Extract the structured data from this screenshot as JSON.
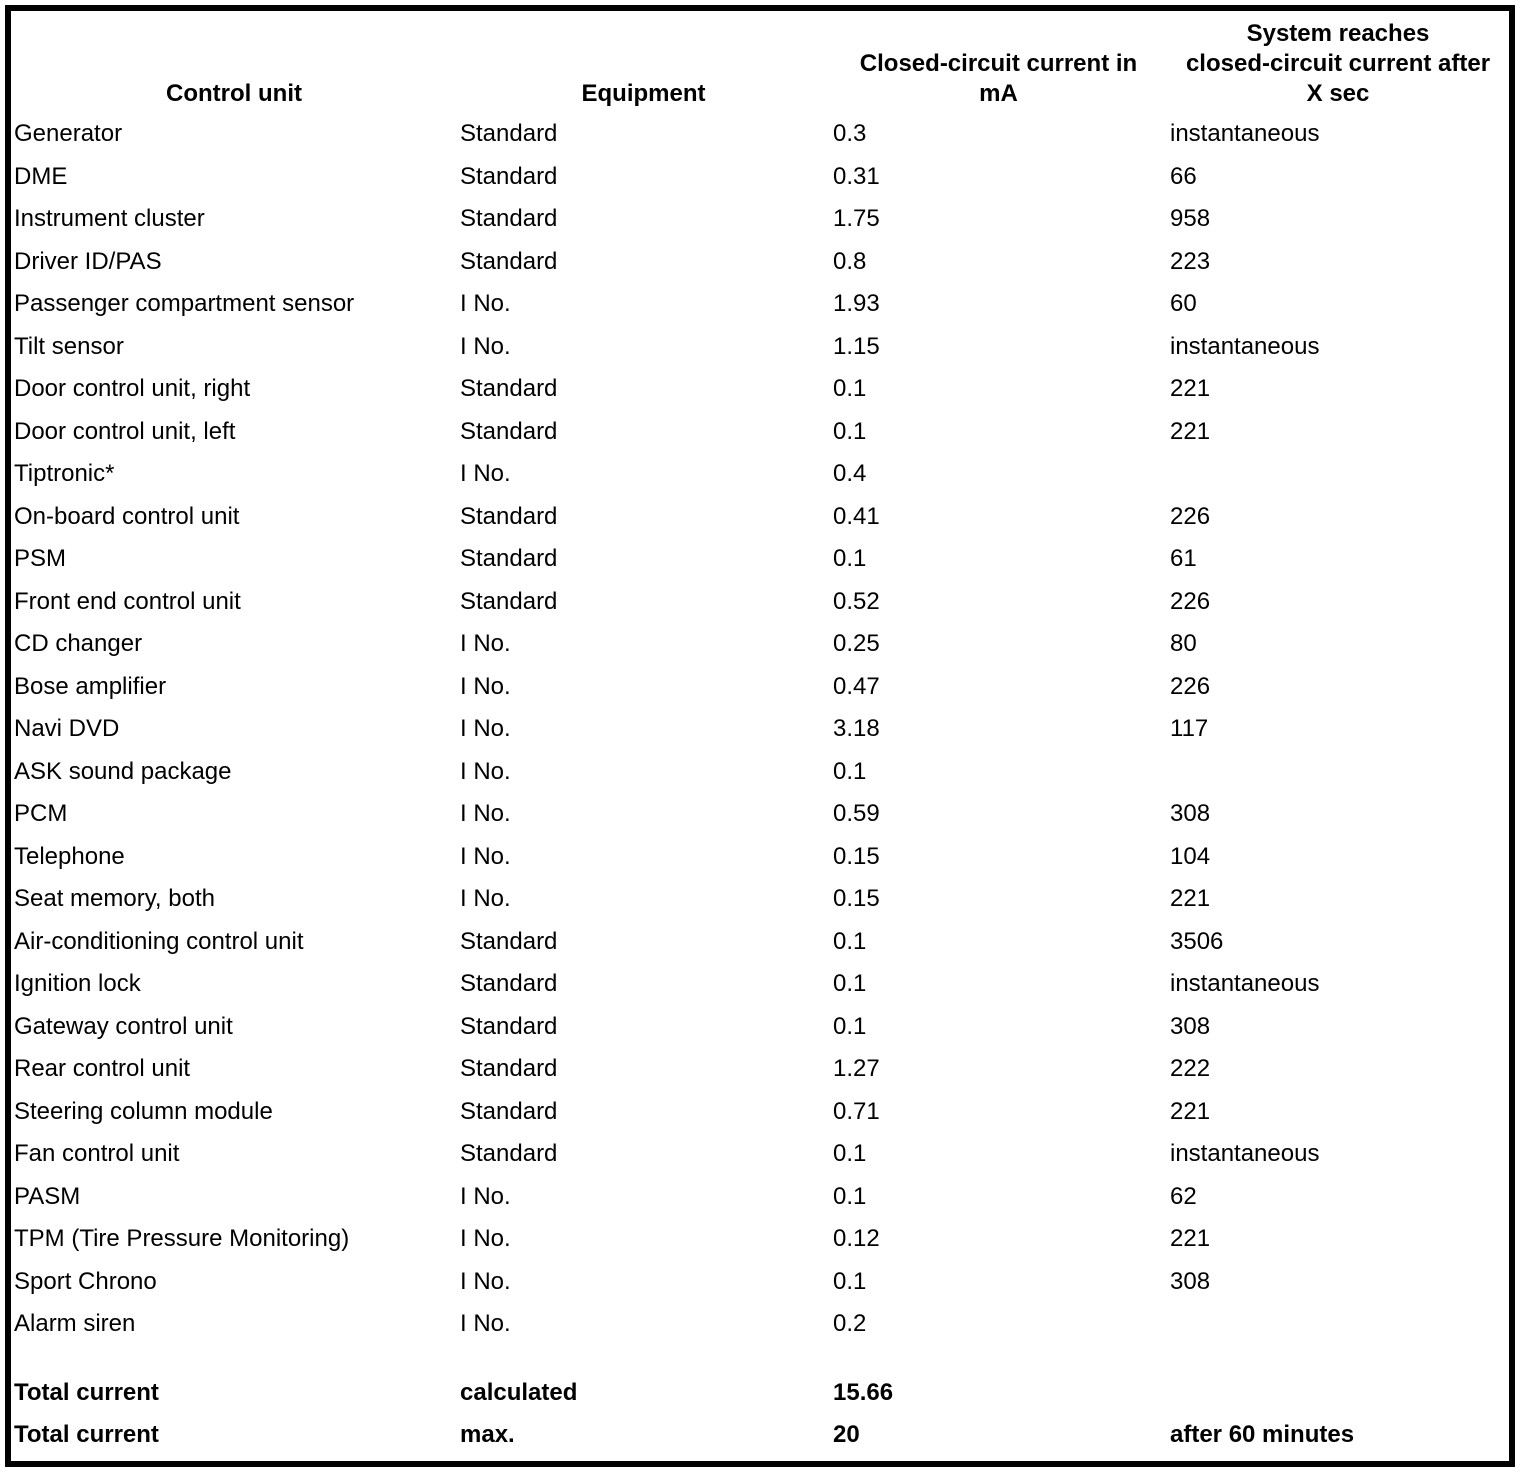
{
  "table": {
    "columns": [
      {
        "id": "control_unit",
        "label_lines": [
          "Control unit"
        ]
      },
      {
        "id": "equipment",
        "label_lines": [
          "Equipment"
        ]
      },
      {
        "id": "current_ma",
        "label_lines": [
          "Closed-circuit current in",
          "mA"
        ]
      },
      {
        "id": "reaches_after_sec",
        "label_lines": [
          "System reaches",
          "closed-circuit current after",
          "X sec"
        ]
      }
    ],
    "rows": [
      [
        "Generator",
        "Standard",
        "0.3",
        "instantaneous"
      ],
      [
        "DME",
        "Standard",
        "0.31",
        "66"
      ],
      [
        "Instrument cluster",
        "Standard",
        "1.75",
        "958"
      ],
      [
        "Driver ID/PAS",
        "Standard",
        "0.8",
        "223"
      ],
      [
        "Passenger compartment sensor",
        "I No.",
        "1.93",
        "60"
      ],
      [
        "Tilt sensor",
        "I No.",
        "1.15",
        "instantaneous"
      ],
      [
        "Door control unit, right",
        "Standard",
        "0.1",
        "221"
      ],
      [
        "Door control unit, left",
        "Standard",
        "0.1",
        "221"
      ],
      [
        "Tiptronic*",
        "I No.",
        "0.4",
        ""
      ],
      [
        "On-board control unit",
        "Standard",
        "0.41",
        "226"
      ],
      [
        "PSM",
        "Standard",
        "0.1",
        "61"
      ],
      [
        "Front end control unit",
        "Standard",
        "0.52",
        "226"
      ],
      [
        "CD changer",
        "I No.",
        "0.25",
        "80"
      ],
      [
        "Bose amplifier",
        "I No.",
        "0.47",
        "226"
      ],
      [
        "Navi DVD",
        "I No.",
        "3.18",
        "117"
      ],
      [
        "ASK sound package",
        "I No.",
        "0.1",
        ""
      ],
      [
        "PCM",
        "I No.",
        "0.59",
        "308"
      ],
      [
        "Telephone",
        "I No.",
        "0.15",
        "104"
      ],
      [
        "Seat memory, both",
        "I No.",
        "0.15",
        "221"
      ],
      [
        "Air-conditioning control unit",
        "Standard",
        "0.1",
        "3506"
      ],
      [
        "Ignition lock",
        "Standard",
        "0.1",
        "instantaneous"
      ],
      [
        "Gateway control unit",
        "Standard",
        "0.1",
        "308"
      ],
      [
        "Rear control unit",
        "Standard",
        "1.27",
        "222"
      ],
      [
        "Steering column module",
        "Standard",
        "0.71",
        "221"
      ],
      [
        "Fan control unit",
        "Standard",
        "0.1",
        "instantaneous"
      ],
      [
        "PASM",
        "I No.",
        "0.1",
        "62"
      ],
      [
        "TPM (Tire Pressure Monitoring)",
        "I No.",
        "0.12",
        "221"
      ],
      [
        "Sport Chrono",
        "I No.",
        "0.1",
        "308"
      ],
      [
        "Alarm siren",
        "I No.",
        "0.2",
        ""
      ]
    ],
    "totals": [
      [
        "Total current",
        "calculated",
        "15.66",
        ""
      ],
      [
        "Total current",
        "max.",
        "20",
        "after 60 minutes"
      ]
    ],
    "colors": {
      "text": "#000000",
      "background": "#ffffff",
      "border": "#000000"
    }
  }
}
